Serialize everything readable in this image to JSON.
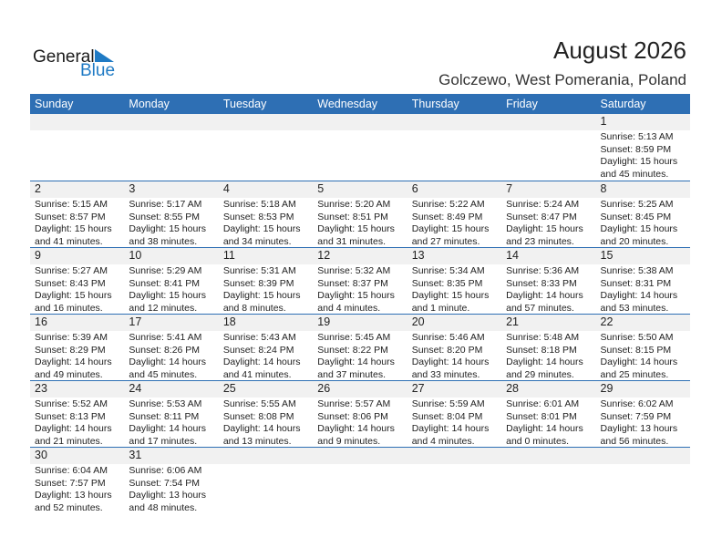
{
  "logo": {
    "line1": "General",
    "line2": "Blue"
  },
  "title": "August 2026",
  "location": "Golczewo, West Pomerania, Poland",
  "colors": {
    "header": "#2e6fb4",
    "logo_blue": "#1f7ac4"
  },
  "weekdays": [
    "Sunday",
    "Monday",
    "Tuesday",
    "Wednesday",
    "Thursday",
    "Friday",
    "Saturday"
  ],
  "weeks": [
    [
      null,
      null,
      null,
      null,
      null,
      null,
      {
        "day": "1",
        "sunrise": "Sunrise: 5:13 AM",
        "sunset": "Sunset: 8:59 PM",
        "daylight1": "Daylight: 15 hours",
        "daylight2": "and 45 minutes."
      }
    ],
    [
      {
        "day": "2",
        "sunrise": "Sunrise: 5:15 AM",
        "sunset": "Sunset: 8:57 PM",
        "daylight1": "Daylight: 15 hours",
        "daylight2": "and 41 minutes."
      },
      {
        "day": "3",
        "sunrise": "Sunrise: 5:17 AM",
        "sunset": "Sunset: 8:55 PM",
        "daylight1": "Daylight: 15 hours",
        "daylight2": "and 38 minutes."
      },
      {
        "day": "4",
        "sunrise": "Sunrise: 5:18 AM",
        "sunset": "Sunset: 8:53 PM",
        "daylight1": "Daylight: 15 hours",
        "daylight2": "and 34 minutes."
      },
      {
        "day": "5",
        "sunrise": "Sunrise: 5:20 AM",
        "sunset": "Sunset: 8:51 PM",
        "daylight1": "Daylight: 15 hours",
        "daylight2": "and 31 minutes."
      },
      {
        "day": "6",
        "sunrise": "Sunrise: 5:22 AM",
        "sunset": "Sunset: 8:49 PM",
        "daylight1": "Daylight: 15 hours",
        "daylight2": "and 27 minutes."
      },
      {
        "day": "7",
        "sunrise": "Sunrise: 5:24 AM",
        "sunset": "Sunset: 8:47 PM",
        "daylight1": "Daylight: 15 hours",
        "daylight2": "and 23 minutes."
      },
      {
        "day": "8",
        "sunrise": "Sunrise: 5:25 AM",
        "sunset": "Sunset: 8:45 PM",
        "daylight1": "Daylight: 15 hours",
        "daylight2": "and 20 minutes."
      }
    ],
    [
      {
        "day": "9",
        "sunrise": "Sunrise: 5:27 AM",
        "sunset": "Sunset: 8:43 PM",
        "daylight1": "Daylight: 15 hours",
        "daylight2": "and 16 minutes."
      },
      {
        "day": "10",
        "sunrise": "Sunrise: 5:29 AM",
        "sunset": "Sunset: 8:41 PM",
        "daylight1": "Daylight: 15 hours",
        "daylight2": "and 12 minutes."
      },
      {
        "day": "11",
        "sunrise": "Sunrise: 5:31 AM",
        "sunset": "Sunset: 8:39 PM",
        "daylight1": "Daylight: 15 hours",
        "daylight2": "and 8 minutes."
      },
      {
        "day": "12",
        "sunrise": "Sunrise: 5:32 AM",
        "sunset": "Sunset: 8:37 PM",
        "daylight1": "Daylight: 15 hours",
        "daylight2": "and 4 minutes."
      },
      {
        "day": "13",
        "sunrise": "Sunrise: 5:34 AM",
        "sunset": "Sunset: 8:35 PM",
        "daylight1": "Daylight: 15 hours",
        "daylight2": "and 1 minute."
      },
      {
        "day": "14",
        "sunrise": "Sunrise: 5:36 AM",
        "sunset": "Sunset: 8:33 PM",
        "daylight1": "Daylight: 14 hours",
        "daylight2": "and 57 minutes."
      },
      {
        "day": "15",
        "sunrise": "Sunrise: 5:38 AM",
        "sunset": "Sunset: 8:31 PM",
        "daylight1": "Daylight: 14 hours",
        "daylight2": "and 53 minutes."
      }
    ],
    [
      {
        "day": "16",
        "sunrise": "Sunrise: 5:39 AM",
        "sunset": "Sunset: 8:29 PM",
        "daylight1": "Daylight: 14 hours",
        "daylight2": "and 49 minutes."
      },
      {
        "day": "17",
        "sunrise": "Sunrise: 5:41 AM",
        "sunset": "Sunset: 8:26 PM",
        "daylight1": "Daylight: 14 hours",
        "daylight2": "and 45 minutes."
      },
      {
        "day": "18",
        "sunrise": "Sunrise: 5:43 AM",
        "sunset": "Sunset: 8:24 PM",
        "daylight1": "Daylight: 14 hours",
        "daylight2": "and 41 minutes."
      },
      {
        "day": "19",
        "sunrise": "Sunrise: 5:45 AM",
        "sunset": "Sunset: 8:22 PM",
        "daylight1": "Daylight: 14 hours",
        "daylight2": "and 37 minutes."
      },
      {
        "day": "20",
        "sunrise": "Sunrise: 5:46 AM",
        "sunset": "Sunset: 8:20 PM",
        "daylight1": "Daylight: 14 hours",
        "daylight2": "and 33 minutes."
      },
      {
        "day": "21",
        "sunrise": "Sunrise: 5:48 AM",
        "sunset": "Sunset: 8:18 PM",
        "daylight1": "Daylight: 14 hours",
        "daylight2": "and 29 minutes."
      },
      {
        "day": "22",
        "sunrise": "Sunrise: 5:50 AM",
        "sunset": "Sunset: 8:15 PM",
        "daylight1": "Daylight: 14 hours",
        "daylight2": "and 25 minutes."
      }
    ],
    [
      {
        "day": "23",
        "sunrise": "Sunrise: 5:52 AM",
        "sunset": "Sunset: 8:13 PM",
        "daylight1": "Daylight: 14 hours",
        "daylight2": "and 21 minutes."
      },
      {
        "day": "24",
        "sunrise": "Sunrise: 5:53 AM",
        "sunset": "Sunset: 8:11 PM",
        "daylight1": "Daylight: 14 hours",
        "daylight2": "and 17 minutes."
      },
      {
        "day": "25",
        "sunrise": "Sunrise: 5:55 AM",
        "sunset": "Sunset: 8:08 PM",
        "daylight1": "Daylight: 14 hours",
        "daylight2": "and 13 minutes."
      },
      {
        "day": "26",
        "sunrise": "Sunrise: 5:57 AM",
        "sunset": "Sunset: 8:06 PM",
        "daylight1": "Daylight: 14 hours",
        "daylight2": "and 9 minutes."
      },
      {
        "day": "27",
        "sunrise": "Sunrise: 5:59 AM",
        "sunset": "Sunset: 8:04 PM",
        "daylight1": "Daylight: 14 hours",
        "daylight2": "and 4 minutes."
      },
      {
        "day": "28",
        "sunrise": "Sunrise: 6:01 AM",
        "sunset": "Sunset: 8:01 PM",
        "daylight1": "Daylight: 14 hours",
        "daylight2": "and 0 minutes."
      },
      {
        "day": "29",
        "sunrise": "Sunrise: 6:02 AM",
        "sunset": "Sunset: 7:59 PM",
        "daylight1": "Daylight: 13 hours",
        "daylight2": "and 56 minutes."
      }
    ],
    [
      {
        "day": "30",
        "sunrise": "Sunrise: 6:04 AM",
        "sunset": "Sunset: 7:57 PM",
        "daylight1": "Daylight: 13 hours",
        "daylight2": "and 52 minutes."
      },
      {
        "day": "31",
        "sunrise": "Sunrise: 6:06 AM",
        "sunset": "Sunset: 7:54 PM",
        "daylight1": "Daylight: 13 hours",
        "daylight2": "and 48 minutes."
      },
      null,
      null,
      null,
      null,
      null
    ]
  ]
}
